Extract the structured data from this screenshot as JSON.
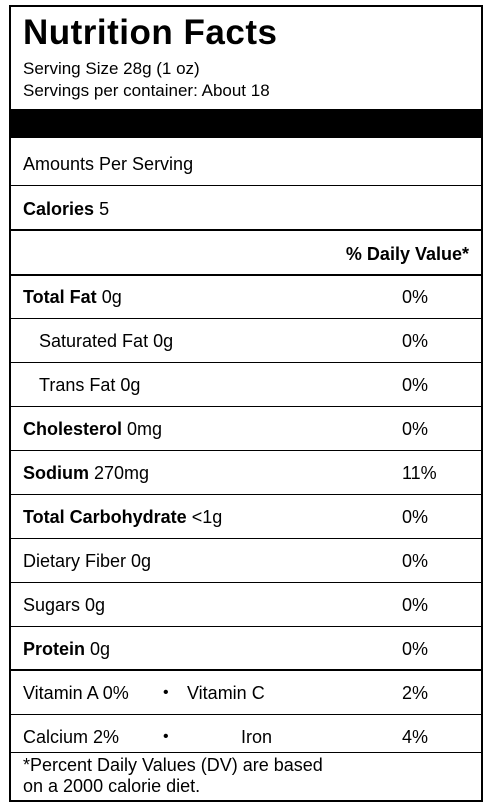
{
  "title": "Nutrition Facts",
  "serving_size": "Serving Size 28g (1 oz)",
  "servings_per_container": "Servings per container: About 18",
  "amounts_per_serving": "Amounts Per Serving",
  "calories": {
    "label": "Calories",
    "value": "5"
  },
  "daily_value_header": "% Daily Value*",
  "nutrients": [
    {
      "label": "Total Fat",
      "amount": "0g",
      "dv": "0%"
    },
    {
      "label": "Saturated Fat 0g",
      "dv": "0%"
    },
    {
      "label": "Trans Fat 0g",
      "dv": "0%"
    },
    {
      "label": "Cholesterol",
      "amount": "0mg",
      "dv": "0%"
    },
    {
      "label": "Sodium",
      "amount": "270mg",
      "dv": "11%"
    },
    {
      "label": "Total Carbohydrate",
      "amount": "<1g",
      "dv": "0%"
    },
    {
      "label": "Dietary Fiber 0g",
      "dv": "0%"
    },
    {
      "label": "Sugars 0g",
      "dv": "0%"
    },
    {
      "label": "Protein",
      "amount": "0g",
      "dv": "0%"
    }
  ],
  "vitamins": [
    {
      "left": "Vitamin A 0%",
      "right": "Vitamin C",
      "dv": "2%"
    },
    {
      "left": "Calcium 2%",
      "right": "Iron",
      "dv": "4%"
    }
  ],
  "bullet": "•",
  "footnote": {
    "line1": "*Percent Daily Values (DV) are based",
    "line2": "on a 2000 calorie diet."
  }
}
